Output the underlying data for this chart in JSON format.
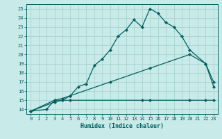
{
  "bg_color": "#c8eae8",
  "grid_color": "#a8d4d0",
  "line_color": "#006060",
  "xlabel": "Humidex (Indice chaleur)",
  "xlim": [
    -0.5,
    23.5
  ],
  "ylim": [
    13.5,
    25.5
  ],
  "yticks": [
    14,
    15,
    16,
    17,
    18,
    19,
    20,
    21,
    22,
    23,
    24,
    25
  ],
  "xticks": [
    0,
    1,
    2,
    3,
    4,
    5,
    6,
    7,
    8,
    9,
    10,
    11,
    12,
    13,
    14,
    15,
    16,
    17,
    18,
    19,
    20,
    21,
    22,
    23
  ],
  "curve1_x": [
    0,
    2,
    3,
    4,
    5,
    6,
    7,
    8,
    9,
    10,
    11,
    12,
    13,
    14,
    15,
    16,
    17,
    18,
    19,
    20,
    22,
    23
  ],
  "curve1_y": [
    13.8,
    14.0,
    15.0,
    15.0,
    15.5,
    16.5,
    16.8,
    18.8,
    19.5,
    20.5,
    22.0,
    22.7,
    23.8,
    23.0,
    25.0,
    24.5,
    23.5,
    23.0,
    22.0,
    20.5,
    19.0,
    16.5
  ],
  "curve2_x": [
    0,
    3,
    4,
    5,
    10,
    15,
    20,
    22,
    23
  ],
  "curve2_y": [
    13.8,
    15.0,
    15.2,
    15.5,
    17.0,
    18.5,
    20.0,
    19.0,
    17.0
  ],
  "curve3_x": [
    0,
    3,
    4,
    5,
    14,
    15,
    20,
    22,
    23
  ],
  "curve3_y": [
    13.8,
    14.8,
    15.0,
    15.0,
    15.0,
    15.0,
    15.0,
    15.0,
    15.0
  ]
}
